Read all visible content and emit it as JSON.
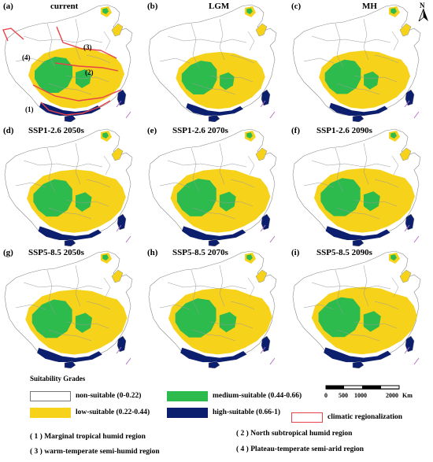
{
  "panels": [
    {
      "label": "(a)",
      "title": "current",
      "zone_scale": 1.0
    },
    {
      "label": "(b)",
      "title": "LGM",
      "zone_scale": 0.93
    },
    {
      "label": "(c)",
      "title": "MH",
      "zone_scale": 0.95
    },
    {
      "label": "(d)",
      "title": "SSP1-2.6 2050s",
      "zone_scale": 1.03
    },
    {
      "label": "(e)",
      "title": "SSP1-2.6 2070s",
      "zone_scale": 1.04
    },
    {
      "label": "(f)",
      "title": "SSP1-2.6 2090s",
      "zone_scale": 1.05
    },
    {
      "label": "(g)",
      "title": "SSP5-8.5 2050s",
      "zone_scale": 1.06
    },
    {
      "label": "(h)",
      "title": "SSP5-8.5 2070s",
      "zone_scale": 1.08
    },
    {
      "label": "(i)",
      "title": "SSP5-8.5 2090s",
      "zone_scale": 1.1
    }
  ],
  "north_label": "N",
  "region_markers": [
    "(1)",
    "(2)",
    "(3)",
    "(4)"
  ],
  "legend": {
    "title": "Suitability Grades",
    "grades": [
      {
        "label": "non-suitable (0-0.22)",
        "color": "#ffffff"
      },
      {
        "label": "medium-suitable (0.44-0.66)",
        "color": "#2dbb4e"
      },
      {
        "label": "low-suitable (0.22-0.44)",
        "color": "#f6d21a"
      },
      {
        "label": "high-suitable (0.66-1)",
        "color": "#0c1f6e"
      }
    ],
    "regionalization_label": "climatic regionalization",
    "regionalization_color": "#e8424a",
    "scale": {
      "ticks": [
        "0",
        "500",
        "1000",
        "2000"
      ],
      "unit": "Km"
    }
  },
  "regions": [
    "( 1 )  Marginal tropical humid region",
    "( 2 )  North subtropical humid region",
    "( 3 )  warm-temperate semi-humid region",
    "( 4 )  Plateau-temperate semi-arid region"
  ]
}
